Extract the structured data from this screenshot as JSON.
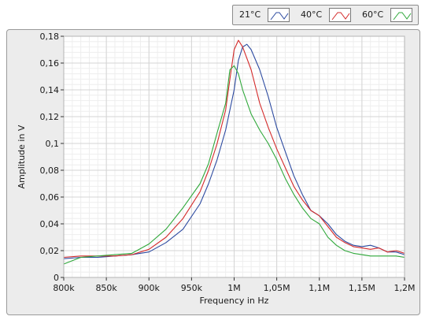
{
  "chart_data": {
    "type": "line",
    "xlabel": "Frequency in Hz",
    "ylabel": "Amplitude in V",
    "xlim": [
      800000,
      1200000
    ],
    "ylim": [
      0,
      0.18
    ],
    "x_ticks": [
      800000,
      850000,
      900000,
      950000,
      1000000,
      1050000,
      1100000,
      1150000,
      1200000
    ],
    "x_tick_labels": [
      "800k",
      "850k",
      "900k",
      "950k",
      "1M",
      "1,05M",
      "1,1M",
      "1,15M",
      "1,2M"
    ],
    "y_ticks": [
      0,
      0.02,
      0.04,
      0.06,
      0.08,
      0.1,
      0.12,
      0.14,
      0.16,
      0.18
    ],
    "y_tick_labels": [
      "0",
      "0,02",
      "0,04",
      "0,06",
      "0,08",
      "0,1",
      "0,12",
      "0,14",
      "0,16",
      "0,18"
    ],
    "grid": true,
    "legend_position": "top-right",
    "series": [
      {
        "name": "21°C",
        "color": "#2c4aa0",
        "x": [
          800000,
          820000,
          840000,
          860000,
          880000,
          900000,
          920000,
          940000,
          960000,
          970000,
          980000,
          990000,
          1000000,
          1005000,
          1010000,
          1015000,
          1020000,
          1030000,
          1040000,
          1050000,
          1060000,
          1070000,
          1080000,
          1090000,
          1100000,
          1110000,
          1120000,
          1130000,
          1140000,
          1150000,
          1160000,
          1170000,
          1180000,
          1190000,
          1200000
        ],
        "y": [
          0.014,
          0.015,
          0.015,
          0.016,
          0.017,
          0.019,
          0.026,
          0.036,
          0.055,
          0.07,
          0.088,
          0.11,
          0.14,
          0.162,
          0.172,
          0.174,
          0.17,
          0.155,
          0.135,
          0.112,
          0.094,
          0.076,
          0.062,
          0.05,
          0.046,
          0.04,
          0.032,
          0.027,
          0.024,
          0.023,
          0.024,
          0.022,
          0.019,
          0.019,
          0.017
        ]
      },
      {
        "name": "40°C",
        "color": "#d42a2a",
        "x": [
          800000,
          820000,
          840000,
          860000,
          880000,
          900000,
          920000,
          940000,
          960000,
          970000,
          980000,
          990000,
          995000,
          1000000,
          1005000,
          1010000,
          1020000,
          1030000,
          1040000,
          1050000,
          1060000,
          1070000,
          1080000,
          1090000,
          1100000,
          1110000,
          1120000,
          1130000,
          1140000,
          1150000,
          1160000,
          1170000,
          1180000,
          1190000,
          1200000
        ],
        "y": [
          0.015,
          0.016,
          0.016,
          0.016,
          0.017,
          0.021,
          0.03,
          0.044,
          0.064,
          0.08,
          0.1,
          0.125,
          0.148,
          0.17,
          0.177,
          0.172,
          0.155,
          0.13,
          0.112,
          0.096,
          0.082,
          0.068,
          0.058,
          0.05,
          0.046,
          0.038,
          0.03,
          0.026,
          0.023,
          0.022,
          0.021,
          0.022,
          0.019,
          0.02,
          0.018
        ]
      },
      {
        "name": "60°C",
        "color": "#2fa83a",
        "x": [
          800000,
          820000,
          840000,
          860000,
          880000,
          900000,
          920000,
          940000,
          960000,
          970000,
          980000,
          990000,
          995000,
          1000000,
          1005000,
          1010000,
          1020000,
          1030000,
          1040000,
          1050000,
          1060000,
          1070000,
          1080000,
          1090000,
          1100000,
          1110000,
          1120000,
          1130000,
          1140000,
          1150000,
          1160000,
          1170000,
          1180000,
          1190000,
          1200000
        ],
        "y": [
          0.01,
          0.015,
          0.016,
          0.017,
          0.018,
          0.025,
          0.036,
          0.052,
          0.07,
          0.085,
          0.108,
          0.13,
          0.155,
          0.158,
          0.152,
          0.14,
          0.122,
          0.11,
          0.1,
          0.088,
          0.074,
          0.062,
          0.052,
          0.044,
          0.04,
          0.03,
          0.024,
          0.02,
          0.018,
          0.017,
          0.016,
          0.016,
          0.016,
          0.016,
          0.015
        ]
      }
    ]
  }
}
